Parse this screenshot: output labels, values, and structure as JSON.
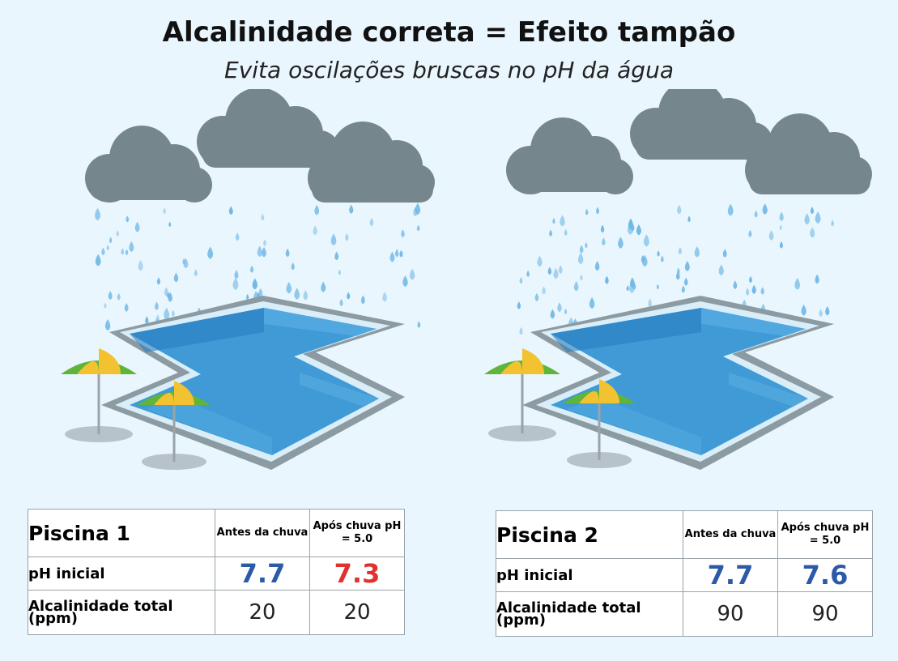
{
  "title": "Alcalinidade correta = Efeito tampão",
  "subtitle": "Evita oscilações bruscas no pH da água",
  "colors": {
    "cloud": "#75868d",
    "rain": "#6fb8e6",
    "water": "#3f9ad6",
    "stable_value": "#2c5aa8",
    "alert_value": "#e0312d",
    "umbrella_green": "#5fb43a",
    "umbrella_yellow": "#f2c230"
  },
  "tables": [
    {
      "name": "Piscina 1",
      "col1": "Antes da chuva",
      "col2": "Após chuva pH = 5.0",
      "row_ph_label": "pH inicial",
      "ph_before": "7.7",
      "ph_after": "7.3",
      "row_alk_label": "Alcalinidade total (ppm)",
      "alk_before": "20",
      "alk_after": "20"
    },
    {
      "name": "Piscina 2",
      "col1": "Antes da chuva",
      "col2": "Após chuva pH = 5.0",
      "row_ph_label": "pH inicial",
      "ph_before": "7.7",
      "ph_after": "7.6",
      "row_alk_label": "Alcalinidade total (ppm)",
      "alk_before": "90",
      "alk_after": "90"
    }
  ]
}
